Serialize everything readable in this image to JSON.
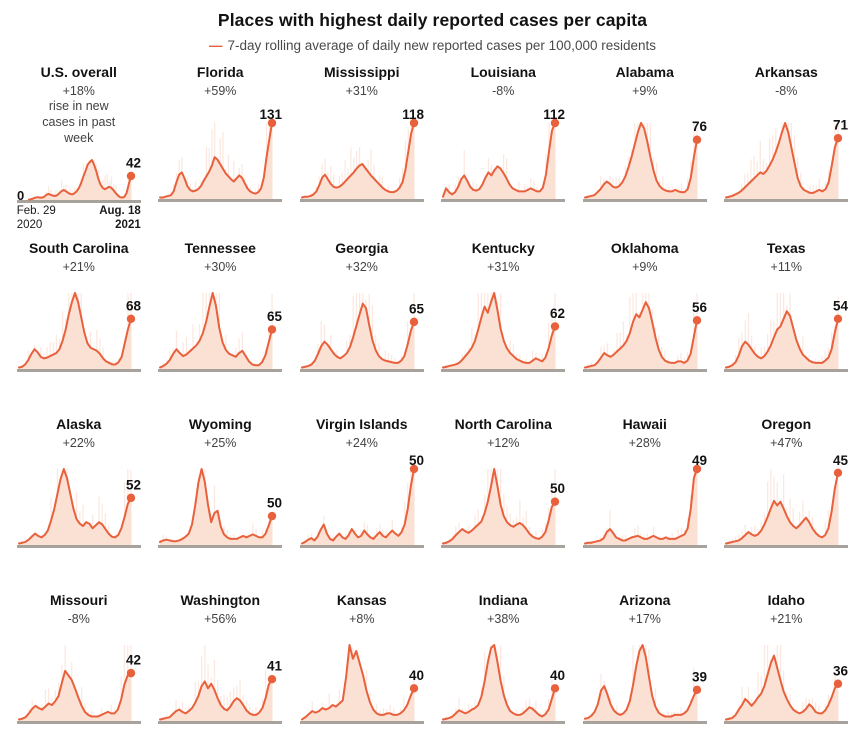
{
  "header": {
    "title": "Places with highest daily reported cases per capita",
    "legend_dash": "—",
    "legend_label": "7-day rolling average of daily new reported cases per 100,000 residents"
  },
  "colors": {
    "accent": "#e8613c",
    "area_fill": "#fbe1d4",
    "daily_bars": "#f6cfbd",
    "baseline": "#a8a29d",
    "title_text": "#121212",
    "muted_text": "#424242"
  },
  "us_axis": {
    "zero_label": "0",
    "start_line1": "Feb. 29",
    "start_line2": "2020",
    "end_line1": "Aug. 18",
    "end_line2": "2021"
  },
  "chart_data": {
    "type": "area",
    "layout": "small-multiples, 6 columns x 4 rows",
    "unit": "7-day rolling average of daily new reported cases per 100,000 residents",
    "x_range": [
      "Feb. 29, 2020",
      "Aug. 18, 2021"
    ],
    "value_meaning": "labeled number = latest 7-day average per 100k; sparkline = relative curve height 0-100 within each panel",
    "places": [
      {
        "name": "U.S. overall",
        "change": "+18%",
        "note": "rise in new cases in past week",
        "value": 42,
        "is_us": true,
        "sparkline": [
          1,
          2,
          4,
          6,
          7,
          6,
          6,
          8,
          13,
          15,
          13,
          11,
          10,
          12,
          17,
          22,
          25,
          22,
          18,
          15,
          14,
          17,
          22,
          30,
          42,
          58,
          72,
          88,
          95,
          100,
          88,
          72,
          52,
          38,
          30,
          27,
          30,
          33,
          30,
          24,
          17,
          11,
          7,
          6,
          8,
          18,
          40,
          60
        ]
      },
      {
        "name": "Florida",
        "change": "+59%",
        "value": 131,
        "sparkline": [
          2,
          2,
          3,
          4,
          5,
          10,
          22,
          32,
          35,
          27,
          17,
          12,
          10,
          11,
          13,
          17,
          24,
          30,
          36,
          44,
          55,
          52,
          46,
          40,
          34,
          30,
          26,
          23,
          27,
          31,
          28,
          21,
          14,
          10,
          8,
          7,
          9,
          14,
          28,
          55,
          78,
          100
        ]
      },
      {
        "name": "Mississippi",
        "change": "+31%",
        "value": 118,
        "sparkline": [
          2,
          3,
          3,
          4,
          6,
          10,
          18,
          28,
          32,
          26,
          20,
          16,
          15,
          16,
          19,
          23,
          27,
          31,
          35,
          40,
          44,
          46,
          41,
          36,
          31,
          27,
          23,
          19,
          15,
          12,
          10,
          9,
          9,
          11,
          15,
          22,
          38,
          62,
          86,
          100
        ]
      },
      {
        "name": "Louisiana",
        "change": "-8%",
        "value": 112,
        "sparkline": [
          3,
          14,
          9,
          6,
          9,
          16,
          26,
          31,
          24,
          16,
          12,
          11,
          13,
          19,
          28,
          35,
          31,
          38,
          43,
          40,
          34,
          27,
          19,
          14,
          12,
          10,
          10,
          10,
          12,
          14,
          12,
          10,
          10,
          15,
          32,
          62,
          90,
          100
        ]
      },
      {
        "name": "Alabama",
        "change": "+9%",
        "value": 76,
        "sparkline": [
          2,
          3,
          4,
          5,
          9,
          13,
          19,
          23,
          20,
          16,
          15,
          17,
          22,
          30,
          42,
          56,
          72,
          88,
          100,
          93,
          76,
          56,
          38,
          24,
          17,
          13,
          11,
          10,
          10,
          12,
          10,
          9,
          9,
          13,
          28,
          55,
          78
        ]
      },
      {
        "name": "Arkansas",
        "change": "-8%",
        "value": 71,
        "sparkline": [
          2,
          3,
          4,
          6,
          8,
          11,
          15,
          19,
          23,
          27,
          31,
          35,
          33,
          37,
          44,
          52,
          62,
          74,
          88,
          100,
          88,
          68,
          48,
          28,
          17,
          12,
          10,
          8,
          8,
          10,
          12,
          10,
          13,
          22,
          44,
          68,
          80
        ]
      },
      {
        "name": "South Carolina",
        "change": "+21%",
        "value": 68,
        "sparkline": [
          2,
          3,
          6,
          12,
          20,
          26,
          22,
          16,
          14,
          15,
          17,
          19,
          21,
          26,
          37,
          52,
          72,
          88,
          100,
          88,
          68,
          48,
          34,
          28,
          26,
          24,
          20,
          14,
          10,
          8,
          6,
          6,
          9,
          16,
          34,
          52,
          66
        ]
      },
      {
        "name": "Tennessee",
        "change": "+30%",
        "value": 65,
        "sparkline": [
          2,
          4,
          7,
          12,
          20,
          26,
          21,
          17,
          19,
          23,
          27,
          31,
          37,
          47,
          62,
          82,
          100,
          83,
          54,
          35,
          25,
          20,
          18,
          16,
          21,
          24,
          17,
          10,
          6,
          5,
          5,
          9,
          18,
          35,
          52
        ]
      },
      {
        "name": "Georgia",
        "change": "+32%",
        "value": 65,
        "sparkline": [
          2,
          3,
          4,
          6,
          11,
          20,
          30,
          36,
          32,
          26,
          20,
          16,
          14,
          17,
          21,
          29,
          42,
          57,
          72,
          86,
          80,
          58,
          38,
          25,
          17,
          13,
          11,
          10,
          9,
          8,
          8,
          11,
          17,
          32,
          50,
          62
        ]
      },
      {
        "name": "Kentucky",
        "change": "+31%",
        "value": 62,
        "sparkline": [
          2,
          3,
          4,
          5,
          6,
          8,
          12,
          17,
          22,
          28,
          37,
          52,
          68,
          82,
          74,
          88,
          100,
          78,
          53,
          37,
          27,
          21,
          17,
          13,
          11,
          9,
          8,
          8,
          11,
          14,
          12,
          10,
          15,
          27,
          44,
          56
        ]
      },
      {
        "name": "Oklahoma",
        "change": "+9%",
        "value": 56,
        "sparkline": [
          2,
          3,
          4,
          5,
          9,
          15,
          21,
          18,
          16,
          19,
          23,
          27,
          31,
          37,
          47,
          62,
          72,
          68,
          78,
          88,
          80,
          62,
          42,
          26,
          16,
          11,
          9,
          8,
          8,
          10,
          10,
          8,
          11,
          20,
          42,
          64
        ]
      },
      {
        "name": "Texas",
        "change": "+11%",
        "value": 54,
        "sparkline": [
          2,
          3,
          5,
          9,
          18,
          30,
          36,
          32,
          26,
          20,
          16,
          14,
          17,
          23,
          31,
          42,
          52,
          56,
          66,
          76,
          70,
          54,
          38,
          27,
          19,
          15,
          11,
          9,
          8,
          8,
          8,
          11,
          15,
          26,
          48,
          66
        ]
      },
      {
        "name": "Alaska",
        "change": "+22%",
        "value": 52,
        "sparkline": [
          2,
          3,
          4,
          7,
          11,
          15,
          12,
          10,
          13,
          19,
          32,
          47,
          67,
          87,
          100,
          88,
          68,
          48,
          34,
          28,
          25,
          30,
          28,
          22,
          26,
          30,
          27,
          21,
          15,
          11,
          10,
          13,
          22,
          37,
          54,
          62
        ]
      },
      {
        "name": "Wyoming",
        "change": "+25%",
        "value": 50,
        "sparkline": [
          4,
          6,
          7,
          6,
          5,
          5,
          6,
          8,
          11,
          15,
          27,
          52,
          82,
          100,
          83,
          53,
          30,
          42,
          45,
          24,
          14,
          10,
          8,
          8,
          8,
          10,
          12,
          10,
          12,
          14,
          12,
          10,
          10,
          15,
          26,
          38
        ]
      },
      {
        "name": "Virgin Islands",
        "change": "+24%",
        "value": 50,
        "sparkline": [
          2,
          4,
          7,
          9,
          6,
          11,
          20,
          27,
          15,
          8,
          6,
          11,
          15,
          10,
          8,
          13,
          21,
          15,
          10,
          12,
          19,
          14,
          10,
          8,
          13,
          17,
          12,
          10,
          15,
          19,
          15,
          12,
          17,
          27,
          48,
          78,
          100
        ]
      },
      {
        "name": "North Carolina",
        "change": "+12%",
        "value": 50,
        "sparkline": [
          2,
          3,
          5,
          8,
          13,
          17,
          21,
          18,
          16,
          19,
          23,
          27,
          31,
          42,
          57,
          77,
          100,
          78,
          53,
          38,
          30,
          26,
          24,
          27,
          29,
          26,
          21,
          15,
          11,
          9,
          8,
          11,
          17,
          32,
          50,
          57
        ]
      },
      {
        "name": "Hawaii",
        "change": "+28%",
        "value": 49,
        "sparkline": [
          2,
          3,
          3,
          4,
          5,
          6,
          9,
          17,
          21,
          16,
          10,
          8,
          6,
          6,
          8,
          10,
          11,
          12,
          10,
          8,
          8,
          10,
          12,
          10,
          8,
          8,
          10,
          8,
          8,
          8,
          10,
          12,
          14,
          22,
          48,
          88,
          100
        ]
      },
      {
        "name": "Oregon",
        "change": "+47%",
        "value": 45,
        "sparkline": [
          2,
          3,
          4,
          5,
          6,
          9,
          13,
          17,
          14,
          12,
          14,
          19,
          27,
          37,
          48,
          58,
          52,
          57,
          48,
          38,
          30,
          25,
          22,
          26,
          31,
          36,
          30,
          22,
          16,
          12,
          10,
          13,
          22,
          44,
          74,
          95
        ]
      },
      {
        "name": "Missouri",
        "change": "-8%",
        "value": 42,
        "sparkline": [
          2,
          3,
          5,
          10,
          16,
          20,
          17,
          15,
          19,
          23,
          21,
          26,
          33,
          50,
          66,
          60,
          54,
          43,
          31,
          20,
          12,
          8,
          6,
          6,
          6,
          8,
          10,
          12,
          10,
          10,
          15,
          28,
          48,
          60,
          63
        ]
      },
      {
        "name": "Washington",
        "change": "+56%",
        "value": 41,
        "sparkline": [
          2,
          3,
          4,
          5,
          9,
          13,
          15,
          12,
          10,
          13,
          17,
          24,
          33,
          46,
          52,
          43,
          49,
          41,
          30,
          21,
          16,
          14,
          19,
          26,
          30,
          27,
          21,
          14,
          10,
          8,
          8,
          11,
          17,
          30,
          48,
          55
        ]
      },
      {
        "name": "Kansas",
        "change": "+8%",
        "value": 40,
        "sparkline": [
          2,
          5,
          9,
          13,
          11,
          13,
          17,
          15,
          17,
          21,
          19,
          23,
          27,
          58,
          100,
          82,
          92,
          76,
          60,
          40,
          25,
          15,
          10,
          8,
          8,
          10,
          10,
          8,
          8,
          10,
          14,
          21,
          33,
          43
        ]
      },
      {
        "name": "Indiana",
        "change": "+38%",
        "value": 40,
        "sparkline": [
          2,
          3,
          4,
          6,
          10,
          14,
          12,
          10,
          12,
          15,
          17,
          21,
          32,
          52,
          77,
          96,
          100,
          78,
          53,
          34,
          21,
          13,
          10,
          8,
          8,
          10,
          14,
          18,
          16,
          12,
          8,
          6,
          9,
          15,
          29,
          43
        ]
      },
      {
        "name": "Arizona",
        "change": "+17%",
        "value": 39,
        "sparkline": [
          3,
          4,
          7,
          12,
          22,
          40,
          46,
          35,
          22,
          14,
          10,
          8,
          10,
          15,
          26,
          47,
          72,
          92,
          100,
          84,
          58,
          33,
          19,
          11,
          8,
          6,
          6,
          6,
          8,
          8,
          8,
          10,
          14,
          23,
          33,
          41
        ]
      },
      {
        "name": "Idaho",
        "change": "+21%",
        "value": 36,
        "sparkline": [
          2,
          3,
          4,
          8,
          15,
          21,
          29,
          25,
          20,
          25,
          31,
          36,
          46,
          61,
          76,
          86,
          70,
          54,
          39,
          29,
          21,
          15,
          12,
          10,
          12,
          16,
          22,
          18,
          12,
          10,
          10,
          14,
          21,
          31,
          43,
          49
        ]
      }
    ]
  }
}
